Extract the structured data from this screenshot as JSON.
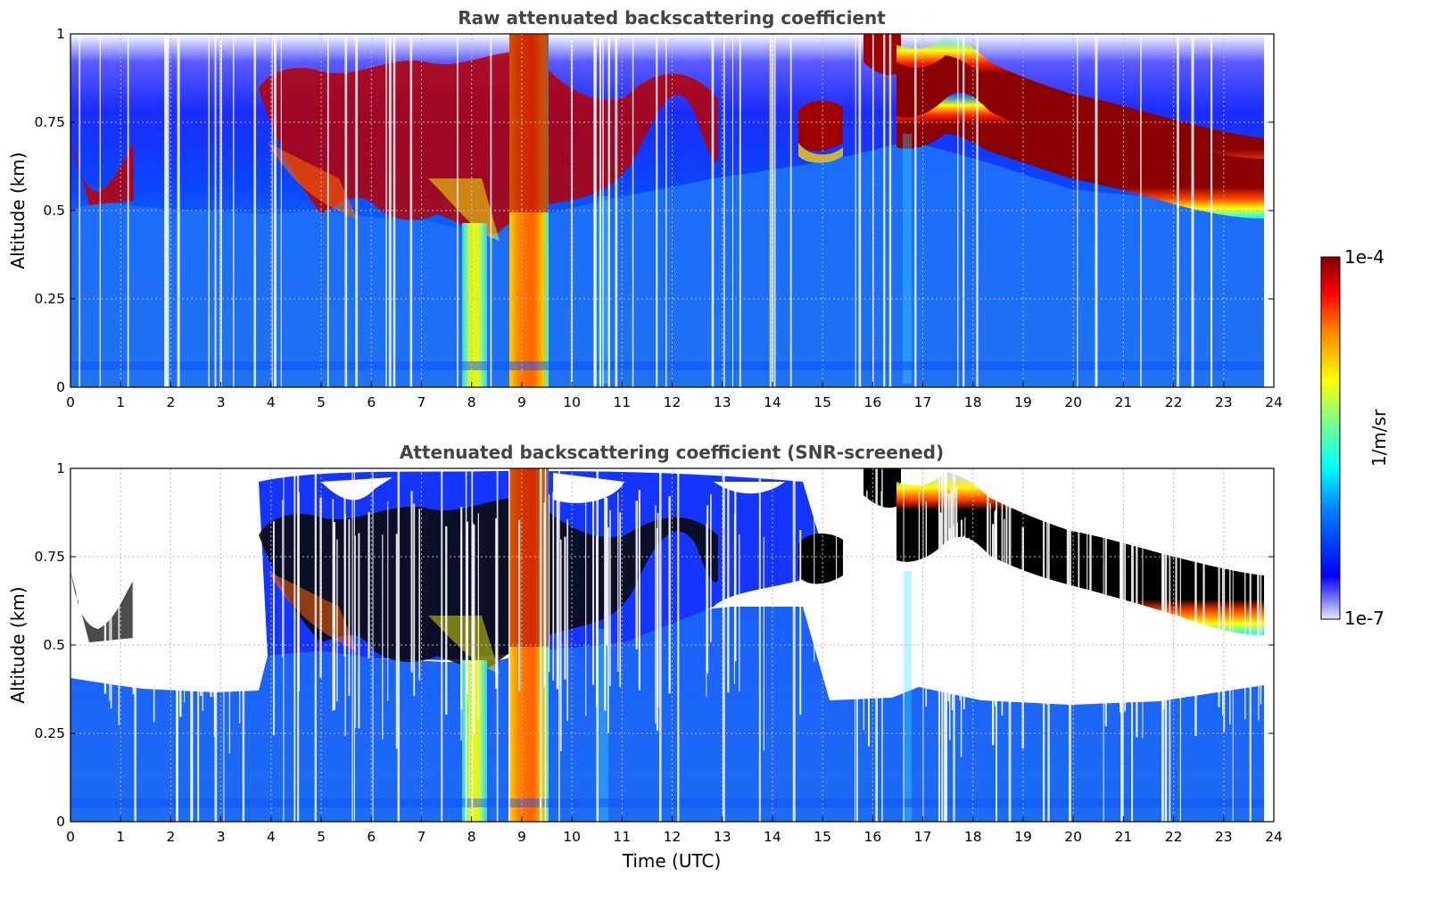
{
  "chart_data": [
    {
      "type": "heatmap",
      "title": "Raw attenuated backscattering coefficient",
      "xlabel": "",
      "ylabel": "Altitude (km)",
      "xlim": [
        0,
        24
      ],
      "ylim": [
        0,
        1
      ],
      "x_ticks": [
        "0",
        "1",
        "2",
        "3",
        "4",
        "5",
        "6",
        "7",
        "8",
        "9",
        "10",
        "11",
        "12",
        "13",
        "14",
        "15",
        "16",
        "17",
        "18",
        "19",
        "20",
        "21",
        "22",
        "23",
        "24"
      ],
      "y_ticks": [
        "0",
        "0.25",
        "0.5",
        "0.75",
        "1"
      ],
      "grid": true,
      "boundary_layer_top_km": 0.5,
      "aerosol_layer": {
        "time_utc": [
          0,
          24
        ],
        "approx_top_km": 0.55
      },
      "cloud_layer": {
        "time_utc": [
          16.5,
          23.8
        ],
        "approx_base_km": [
          0.78,
          0.8,
          0.82,
          0.75,
          0.7,
          0.66,
          0.62,
          0.58,
          0.56
        ],
        "approx_top_km": [
          0.98,
          0.99,
          0.97,
          0.88,
          0.83,
          0.78,
          0.74,
          0.71,
          0.69
        ]
      },
      "precipitation_columns_utc": [
        [
          7.8,
          8.3
        ],
        [
          8.9,
          9.5
        ]
      ]
    },
    {
      "type": "heatmap",
      "title": "Attenuated backscattering coefficient (SNR-screened)",
      "xlabel": "Time (UTC)",
      "ylabel": "Altitude (km)",
      "xlim": [
        0,
        24
      ],
      "ylim": [
        0,
        1
      ],
      "x_ticks": [
        "0",
        "1",
        "2",
        "3",
        "4",
        "5",
        "6",
        "7",
        "8",
        "9",
        "10",
        "11",
        "12",
        "13",
        "14",
        "15",
        "16",
        "17",
        "18",
        "19",
        "20",
        "21",
        "22",
        "23",
        "24"
      ],
      "y_ticks": [
        "0",
        "0.25",
        "0.5",
        "0.75",
        "1"
      ],
      "grid": true,
      "screened_above_km": 0.38,
      "saturated_color": "#000000"
    }
  ],
  "colorbar": {
    "label": "1/m/sr",
    "min_label": "1e-7",
    "max_label": "1e-4",
    "colormap": "jet",
    "scale": "log"
  }
}
